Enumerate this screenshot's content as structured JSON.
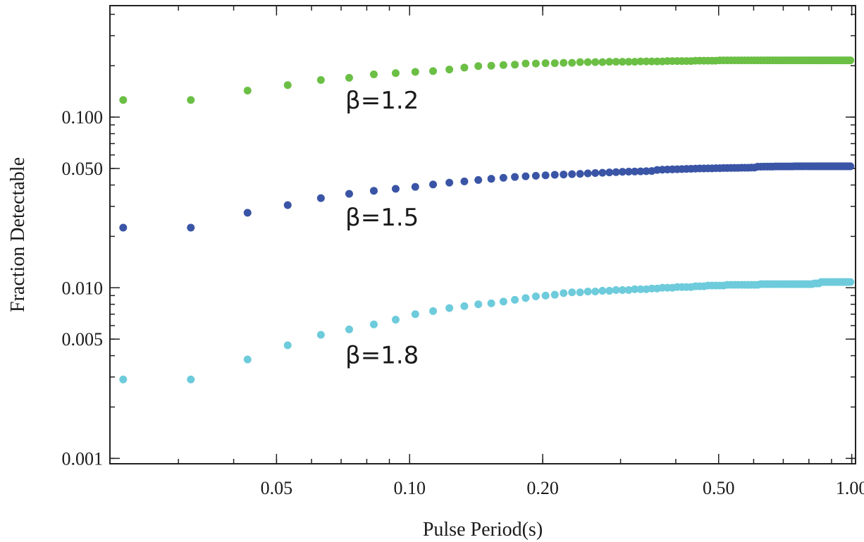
{
  "chart_data": {
    "type": "scatter",
    "xlabel": "Pulse Period(s)",
    "ylabel": "Fraction Detectable",
    "x_scale": "log",
    "y_scale": "log",
    "xlim": [
      0.021,
      1.02
    ],
    "ylim": [
      0.00093,
      0.45
    ],
    "x_ticks": [
      {
        "value": 0.05,
        "label": "0.05"
      },
      {
        "value": 0.1,
        "label": "0.10"
      },
      {
        "value": 0.2,
        "label": "0.20"
      },
      {
        "value": 0.5,
        "label": "0.50"
      },
      {
        "value": 1.0,
        "label": "1.00"
      }
    ],
    "y_ticks": [
      {
        "value": 0.001,
        "label": "0.001"
      },
      {
        "value": 0.005,
        "label": "0.005"
      },
      {
        "value": 0.01,
        "label": "0.010"
      },
      {
        "value": 0.05,
        "label": "0.050"
      },
      {
        "value": 0.1,
        "label": "0.100"
      }
    ],
    "grid": false,
    "legend": "none",
    "x": [
      0.0225,
      0.032,
      0.043,
      0.053,
      0.063,
      0.073,
      0.083,
      0.093,
      0.103,
      0.113,
      0.123,
      0.133,
      0.143,
      0.153,
      0.163,
      0.173,
      0.183,
      0.193,
      0.203,
      0.213,
      0.223,
      0.233,
      0.243,
      0.253,
      0.263,
      0.273,
      0.283,
      0.293,
      0.303,
      0.313,
      0.323,
      0.333,
      0.343,
      0.353,
      0.363,
      0.373,
      0.383,
      0.393,
      0.403,
      0.413,
      0.423,
      0.433,
      0.443,
      0.453,
      0.463,
      0.473,
      0.483,
      0.493,
      0.503,
      0.513,
      0.523,
      0.533,
      0.543,
      0.553,
      0.563,
      0.573,
      0.583,
      0.593,
      0.603,
      0.613,
      0.623,
      0.633,
      0.643,
      0.653,
      0.663,
      0.673,
      0.683,
      0.693,
      0.703,
      0.713,
      0.723,
      0.733,
      0.743,
      0.753,
      0.763,
      0.773,
      0.783,
      0.793,
      0.803,
      0.813,
      0.823,
      0.833,
      0.843,
      0.853,
      0.863,
      0.873,
      0.883,
      0.893,
      0.903,
      0.913,
      0.923,
      0.933,
      0.943,
      0.953,
      0.963,
      0.973,
      0.983,
      0.993
    ],
    "series": [
      {
        "name": "β=1.2",
        "color": "#6bbf45",
        "values": [
          0.126,
          0.126,
          0.143,
          0.154,
          0.165,
          0.17,
          0.178,
          0.181,
          0.184,
          0.186,
          0.19,
          0.195,
          0.199,
          0.2,
          0.202,
          0.203,
          0.206,
          0.206,
          0.207,
          0.207,
          0.208,
          0.208,
          0.21,
          0.21,
          0.21,
          0.21,
          0.211,
          0.211,
          0.211,
          0.211,
          0.211,
          0.212,
          0.212,
          0.212,
          0.212,
          0.212,
          0.213,
          0.213,
          0.213,
          0.213,
          0.213,
          0.213,
          0.214,
          0.214,
          0.214,
          0.214,
          0.214,
          0.214,
          0.215,
          0.215,
          0.215,
          0.215,
          0.215,
          0.215,
          0.215,
          0.215,
          0.215,
          0.215,
          0.215,
          0.215,
          0.215,
          0.215,
          0.215,
          0.215,
          0.215,
          0.215,
          0.215,
          0.215,
          0.215,
          0.215,
          0.215,
          0.215,
          0.215,
          0.215,
          0.215,
          0.215,
          0.215,
          0.215,
          0.215,
          0.215,
          0.215,
          0.215,
          0.215,
          0.215,
          0.215,
          0.215,
          0.215,
          0.215,
          0.215,
          0.215,
          0.215,
          0.215,
          0.215,
          0.215,
          0.215,
          0.215,
          0.215,
          0.215
        ]
      },
      {
        "name": "β=1.5",
        "color": "#3a55a6",
        "values": [
          0.0225,
          0.0225,
          0.0275,
          0.0305,
          0.0335,
          0.0355,
          0.037,
          0.038,
          0.039,
          0.0403,
          0.0413,
          0.042,
          0.0428,
          0.0435,
          0.0441,
          0.0446,
          0.045,
          0.0453,
          0.0456,
          0.0459,
          0.0461,
          0.0463,
          0.0465,
          0.0468,
          0.047,
          0.0472,
          0.0474,
          0.0476,
          0.0478,
          0.0479,
          0.048,
          0.0481,
          0.0482,
          0.0483,
          0.049,
          0.0492,
          0.0493,
          0.0494,
          0.0495,
          0.0496,
          0.0497,
          0.0498,
          0.0499,
          0.05,
          0.05,
          0.0501,
          0.0501,
          0.0502,
          0.0502,
          0.0503,
          0.0503,
          0.0504,
          0.0504,
          0.0504,
          0.0505,
          0.0505,
          0.0505,
          0.0506,
          0.0506,
          0.0512,
          0.0512,
          0.0513,
          0.0513,
          0.0513,
          0.0513,
          0.0514,
          0.0514,
          0.0514,
          0.0514,
          0.0514,
          0.0514,
          0.0514,
          0.0515,
          0.0515,
          0.0515,
          0.0515,
          0.0515,
          0.0515,
          0.0515,
          0.0515,
          0.0515,
          0.0515,
          0.0515,
          0.0515,
          0.0515,
          0.0515,
          0.0515,
          0.0515,
          0.0515,
          0.0515,
          0.0515,
          0.0515,
          0.0515,
          0.0515,
          0.0515,
          0.0515,
          0.0515,
          0.0515
        ]
      },
      {
        "name": "β=1.8",
        "color": "#6dcbdb",
        "values": [
          0.0029,
          0.0029,
          0.0038,
          0.0046,
          0.0053,
          0.0057,
          0.0061,
          0.0065,
          0.007,
          0.0073,
          0.0076,
          0.0078,
          0.008,
          0.0081,
          0.0083,
          0.0085,
          0.0087,
          0.0089,
          0.009,
          0.0091,
          0.0093,
          0.0094,
          0.0094,
          0.0095,
          0.0095,
          0.0096,
          0.0096,
          0.0097,
          0.0097,
          0.0097,
          0.0098,
          0.0098,
          0.0098,
          0.0099,
          0.0099,
          0.01,
          0.01,
          0.01,
          0.0101,
          0.0101,
          0.0101,
          0.0101,
          0.0102,
          0.0102,
          0.0102,
          0.0103,
          0.0103,
          0.0103,
          0.0103,
          0.0103,
          0.0104,
          0.0104,
          0.0104,
          0.0104,
          0.0104,
          0.0104,
          0.0104,
          0.0104,
          0.0104,
          0.0104,
          0.0105,
          0.0105,
          0.0105,
          0.0105,
          0.0105,
          0.0105,
          0.0105,
          0.0105,
          0.0105,
          0.0105,
          0.0105,
          0.0105,
          0.0105,
          0.0105,
          0.0105,
          0.0105,
          0.0105,
          0.0105,
          0.0105,
          0.0105,
          0.0106,
          0.0106,
          0.0106,
          0.0108,
          0.0108,
          0.0108,
          0.0108,
          0.0108,
          0.0108,
          0.0108,
          0.0108,
          0.0108,
          0.0108,
          0.0108,
          0.0108,
          0.0108,
          0.0108,
          0.0108
        ]
      }
    ],
    "annotations": [
      {
        "text": "β=1.2",
        "x": 0.07,
        "y": 0.112
      },
      {
        "text": "β=1.5",
        "x": 0.07,
        "y": 0.0232
      },
      {
        "text": "β=1.8",
        "x": 0.07,
        "y": 0.0036
      }
    ]
  }
}
